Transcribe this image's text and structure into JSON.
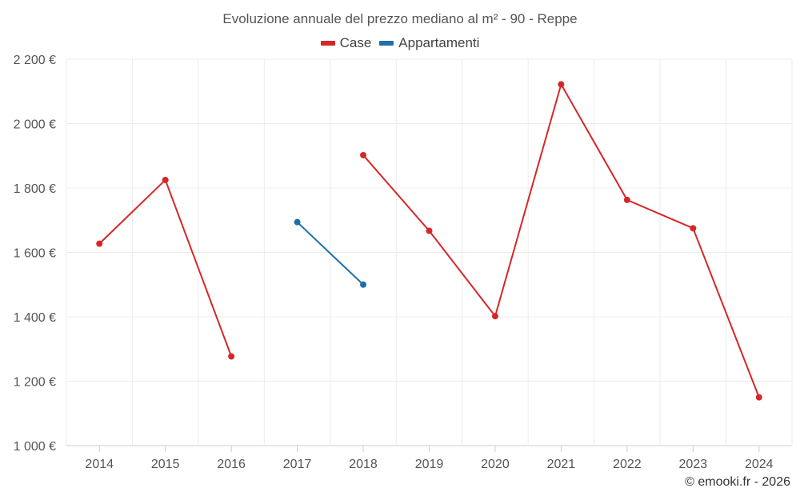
{
  "chart_data": {
    "type": "line",
    "title": "Evoluzione annuale del prezzo mediano al m² - 90 - Reppe",
    "categories": [
      "2014",
      "2015",
      "2016",
      "2017",
      "2018",
      "2019",
      "2020",
      "2021",
      "2022",
      "2023",
      "2024"
    ],
    "series": [
      {
        "name": "Case",
        "color": "#d62728",
        "values": [
          1627,
          1825,
          1277,
          null,
          1902,
          1667,
          1402,
          2122,
          1763,
          1675,
          1150
        ]
      },
      {
        "name": "Appartamenti",
        "color": "#1f6fa8",
        "values": [
          null,
          null,
          null,
          1694,
          1500,
          null,
          null,
          null,
          null,
          null,
          null
        ]
      }
    ],
    "ylim": [
      1000,
      2200
    ],
    "yticks": [
      1000,
      1200,
      1400,
      1600,
      1800,
      2000,
      2200
    ],
    "ytick_labels": [
      "1 000 €",
      "1 200 €",
      "1 400 €",
      "1 600 €",
      "1 800 €",
      "2 000 €",
      "2 200 €"
    ],
    "xlabel": "",
    "ylabel": "",
    "grid": true,
    "legend_position": "top-center"
  },
  "credit": "© emooki.fr - 2026"
}
